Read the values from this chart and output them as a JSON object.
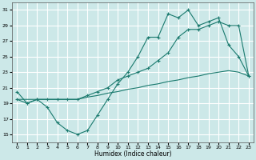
{
  "xlabel": "Humidex (Indice chaleur)",
  "background_color": "#cce8e8",
  "grid_color": "#ffffff",
  "line_color": "#1a7a6e",
  "xlim": [
    -0.5,
    23.5
  ],
  "ylim": [
    14,
    32
  ],
  "yticks": [
    15,
    17,
    19,
    21,
    23,
    25,
    27,
    29,
    31
  ],
  "xticks": [
    0,
    1,
    2,
    3,
    4,
    5,
    6,
    7,
    8,
    9,
    10,
    11,
    12,
    13,
    14,
    15,
    16,
    17,
    18,
    19,
    20,
    21,
    22,
    23
  ],
  "line1_x": [
    0,
    1,
    2,
    3,
    4,
    5,
    6,
    7,
    8,
    9,
    10,
    11,
    12,
    13,
    14,
    15,
    16,
    17,
    18,
    19,
    20,
    21,
    22,
    23
  ],
  "line1_y": [
    20.5,
    19.0,
    19.5,
    18.5,
    16.5,
    15.5,
    15.0,
    15.5,
    17.5,
    19.5,
    21.5,
    23.0,
    25.0,
    27.5,
    27.5,
    30.5,
    30.0,
    31.0,
    29.0,
    29.5,
    30.0,
    26.5,
    25.0,
    22.5
  ],
  "line2_x": [
    0,
    1,
    2,
    3,
    4,
    5,
    6,
    7,
    8,
    9,
    10,
    11,
    12,
    13,
    14,
    15,
    16,
    17,
    18,
    19,
    20,
    21,
    22,
    23
  ],
  "line2_y": [
    19.5,
    19.0,
    19.5,
    19.5,
    19.5,
    19.5,
    19.5,
    20.0,
    20.5,
    21.0,
    22.0,
    22.5,
    23.0,
    23.5,
    24.5,
    25.5,
    27.5,
    28.5,
    28.5,
    29.0,
    29.5,
    29.0,
    29.0,
    22.5
  ],
  "line3_x": [
    0,
    1,
    2,
    3,
    4,
    5,
    6,
    7,
    8,
    9,
    10,
    11,
    12,
    13,
    14,
    15,
    16,
    17,
    18,
    19,
    20,
    21,
    22,
    23
  ],
  "line3_y": [
    19.5,
    19.5,
    19.5,
    19.5,
    19.5,
    19.5,
    19.5,
    19.8,
    20.0,
    20.3,
    20.5,
    20.8,
    21.0,
    21.3,
    21.5,
    21.8,
    22.0,
    22.3,
    22.5,
    22.8,
    23.0,
    23.2,
    23.0,
    22.5
  ]
}
